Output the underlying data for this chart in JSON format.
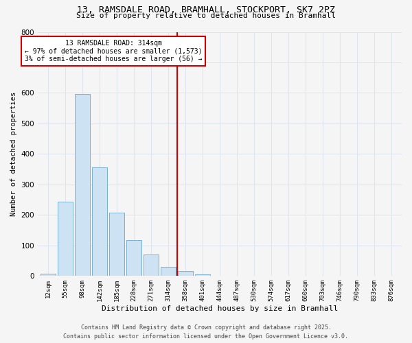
{
  "title_line1": "13, RAMSDALE ROAD, BRAMHALL, STOCKPORT, SK7 2PZ",
  "title_line2": "Size of property relative to detached houses in Bramhall",
  "bar_labels": [
    "12sqm",
    "55sqm",
    "98sqm",
    "142sqm",
    "185sqm",
    "228sqm",
    "271sqm",
    "314sqm",
    "358sqm",
    "401sqm",
    "444sqm",
    "487sqm",
    "530sqm",
    "574sqm",
    "617sqm",
    "660sqm",
    "703sqm",
    "746sqm",
    "790sqm",
    "833sqm",
    "876sqm"
  ],
  "bar_values": [
    7,
    243,
    596,
    355,
    207,
    117,
    71,
    30,
    17,
    5,
    0,
    0,
    0,
    0,
    0,
    0,
    0,
    0,
    0,
    0,
    0
  ],
  "bar_color": "#cde3f3",
  "bar_edge_color": "#7ab0d4",
  "vline_x_index": 7,
  "vline_color": "#cc0000",
  "xlabel": "Distribution of detached houses by size in Bramhall",
  "ylabel": "Number of detached properties",
  "ylim": [
    0,
    800
  ],
  "yticks": [
    0,
    100,
    200,
    300,
    400,
    500,
    600,
    700,
    800
  ],
  "annotation_line1": "13 RAMSDALE ROAD: 314sqm",
  "annotation_line2": "← 97% of detached houses are smaller (1,573)",
  "annotation_line3": "3% of semi-detached houses are larger (56) →",
  "footer_line1": "Contains HM Land Registry data © Crown copyright and database right 2025.",
  "footer_line2": "Contains public sector information licensed under the Open Government Licence v3.0.",
  "bg_color": "#f5f5f5",
  "grid_color": "#dde4ef",
  "title_fontsize": 9.5,
  "subtitle_fontsize": 8,
  "xlabel_fontsize": 8,
  "ylabel_fontsize": 7.5,
  "xtick_fontsize": 6.5,
  "ytick_fontsize": 7.5,
  "annot_fontsize": 7,
  "footer_fontsize": 6
}
